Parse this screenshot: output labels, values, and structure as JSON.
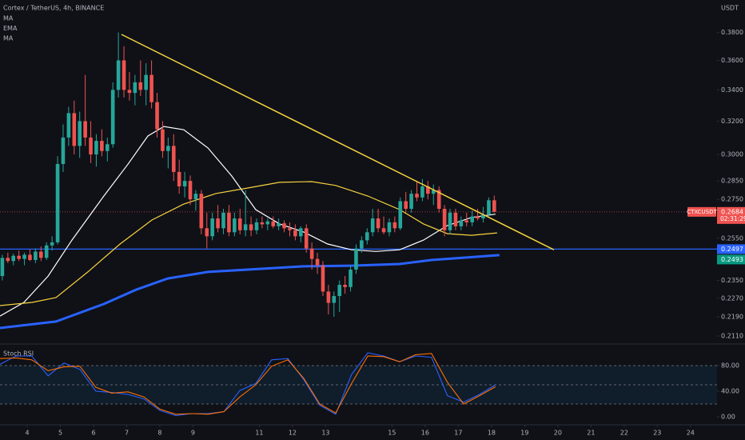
{
  "chart_data": {
    "type": "candlestick",
    "title": "Cortex / TetherUS, 4h, BINANCE",
    "currency": "USDT",
    "log_scale": true,
    "up_color": "#26a69a",
    "down_color": "#ef5350",
    "xlim": [
      3.18,
      24.8
    ],
    "xticks": [
      4,
      5,
      6,
      7,
      8,
      9,
      11,
      12,
      13,
      15,
      16,
      17,
      18,
      19,
      20,
      21,
      22,
      23,
      24
    ],
    "ylim": [
      0.2084,
      0.4047
    ],
    "yticks": [
      {
        "value": 0.38,
        "label": "0.3800"
      },
      {
        "value": 0.36,
        "label": "0.3600"
      },
      {
        "value": 0.34,
        "label": "0.3400"
      },
      {
        "value": 0.32,
        "label": "0.3200"
      },
      {
        "value": 0.3,
        "label": "0.3000"
      },
      {
        "value": 0.285,
        "label": "0.2850"
      },
      {
        "value": 0.275,
        "label": "0.2750"
      },
      {
        "value": 0.255,
        "label": "0.2550"
      },
      {
        "value": 0.235,
        "label": "0.2350"
      },
      {
        "value": 0.227,
        "label": "0.2270"
      },
      {
        "value": 0.219,
        "label": "0.2190"
      },
      {
        "value": 0.211,
        "label": "0.2110"
      }
    ],
    "x": [
      3.25,
      3.417,
      3.583,
      3.75,
      3.917,
      4.083,
      4.25,
      4.417,
      4.583,
      4.75,
      4.917,
      5.083,
      5.25,
      5.417,
      5.583,
      5.75,
      5.917,
      6.083,
      6.25,
      6.417,
      6.583,
      6.75,
      6.917,
      7.083,
      7.25,
      7.417,
      7.583,
      7.75,
      7.917,
      8.083,
      8.25,
      8.417,
      8.583,
      8.75,
      8.917,
      9.083,
      9.25,
      9.417,
      9.583,
      9.75,
      9.917,
      10.083,
      10.25,
      10.417,
      10.583,
      10.75,
      10.917,
      11.083,
      11.25,
      11.417,
      11.583,
      11.75,
      11.917,
      12.083,
      12.25,
      12.417,
      12.583,
      12.75,
      12.917,
      13.083,
      13.25,
      13.417,
      13.583,
      13.75,
      13.917,
      14.083,
      14.25,
      14.417,
      14.583,
      14.75,
      14.917,
      15.083,
      15.25,
      15.417,
      15.583,
      15.75,
      15.917,
      16.083,
      16.25,
      16.417,
      16.583,
      16.75,
      16.917,
      17.083,
      17.25,
      17.417,
      17.583,
      17.75,
      17.917,
      18.083
    ],
    "open": [
      0.237,
      0.2455,
      0.244,
      0.2465,
      0.245,
      0.247,
      0.2445,
      0.2485,
      0.2455,
      0.2515,
      0.253,
      0.2945,
      0.31,
      0.325,
      0.305,
      0.32,
      0.31,
      0.3,
      0.308,
      0.302,
      0.306,
      0.34,
      0.36,
      0.34,
      0.338,
      0.345,
      0.34,
      0.35,
      0.332,
      0.315,
      0.302,
      0.305,
      0.29,
      0.282,
      0.285,
      0.275,
      0.278,
      0.26,
      0.256,
      0.265,
      0.26,
      0.268,
      0.258,
      0.265,
      0.259,
      0.262,
      0.259,
      0.263,
      0.262,
      0.2635,
      0.261,
      0.2625,
      0.26,
      0.259,
      0.256,
      0.26,
      0.25,
      0.245,
      0.242,
      0.23,
      0.225,
      0.228,
      0.233,
      0.232,
      0.24,
      0.25,
      0.254,
      0.258,
      0.265,
      0.26,
      0.258,
      0.263,
      0.26,
      0.274,
      0.27,
      0.278,
      0.276,
      0.282,
      0.278,
      0.28,
      0.27,
      0.259,
      0.268,
      0.261,
      0.264,
      0.263,
      0.266,
      0.265,
      0.267,
      0.2745
    ],
    "high": [
      0.247,
      0.248,
      0.2475,
      0.249,
      0.248,
      0.2495,
      0.25,
      0.251,
      0.253,
      0.256,
      0.299,
      0.318,
      0.329,
      0.333,
      0.326,
      0.35,
      0.32,
      0.312,
      0.315,
      0.31,
      0.345,
      0.38,
      0.37,
      0.352,
      0.35,
      0.36,
      0.358,
      0.36,
      0.338,
      0.32,
      0.31,
      0.312,
      0.297,
      0.29,
      0.288,
      0.28,
      0.28,
      0.268,
      0.268,
      0.272,
      0.27,
      0.272,
      0.268,
      0.27,
      0.28,
      0.266,
      0.265,
      0.266,
      0.265,
      0.266,
      0.265,
      0.264,
      0.263,
      0.262,
      0.261,
      0.262,
      0.253,
      0.248,
      0.244,
      0.233,
      0.23,
      0.235,
      0.237,
      0.242,
      0.252,
      0.256,
      0.26,
      0.27,
      0.27,
      0.266,
      0.265,
      0.266,
      0.276,
      0.279,
      0.28,
      0.285,
      0.286,
      0.285,
      0.283,
      0.282,
      0.272,
      0.27,
      0.27,
      0.266,
      0.268,
      0.269,
      0.27,
      0.271,
      0.276,
      0.277
    ],
    "low": [
      0.235,
      0.243,
      0.242,
      0.244,
      0.242,
      0.244,
      0.243,
      0.244,
      0.2445,
      0.249,
      0.252,
      0.29,
      0.305,
      0.3,
      0.298,
      0.305,
      0.295,
      0.293,
      0.299,
      0.296,
      0.304,
      0.335,
      0.335,
      0.333,
      0.33,
      0.336,
      0.33,
      0.328,
      0.31,
      0.298,
      0.292,
      0.285,
      0.278,
      0.276,
      0.272,
      0.269,
      0.257,
      0.25,
      0.254,
      0.258,
      0.257,
      0.256,
      0.256,
      0.257,
      0.256,
      0.256,
      0.257,
      0.26,
      0.259,
      0.26,
      0.259,
      0.258,
      0.256,
      0.254,
      0.253,
      0.248,
      0.24,
      0.238,
      0.228,
      0.22,
      0.219,
      0.221,
      0.229,
      0.23,
      0.238,
      0.248,
      0.252,
      0.256,
      0.258,
      0.257,
      0.256,
      0.258,
      0.259,
      0.268,
      0.268,
      0.274,
      0.274,
      0.275,
      0.272,
      0.268,
      0.256,
      0.257,
      0.259,
      0.259,
      0.261,
      0.261,
      0.264,
      0.263,
      0.266,
      0.268
    ],
    "close": [
      0.2455,
      0.244,
      0.2465,
      0.245,
      0.247,
      0.2445,
      0.2485,
      0.2455,
      0.2515,
      0.253,
      0.2945,
      0.31,
      0.325,
      0.305,
      0.32,
      0.31,
      0.3,
      0.308,
      0.302,
      0.306,
      0.34,
      0.36,
      0.34,
      0.338,
      0.345,
      0.34,
      0.35,
      0.332,
      0.315,
      0.302,
      0.305,
      0.29,
      0.282,
      0.285,
      0.275,
      0.278,
      0.26,
      0.256,
      0.265,
      0.26,
      0.268,
      0.258,
      0.265,
      0.259,
      0.262,
      0.259,
      0.263,
      0.262,
      0.2635,
      0.261,
      0.2625,
      0.26,
      0.259,
      0.256,
      0.26,
      0.25,
      0.245,
      0.242,
      0.23,
      0.225,
      0.228,
      0.233,
      0.232,
      0.24,
      0.25,
      0.254,
      0.258,
      0.265,
      0.26,
      0.258,
      0.263,
      0.26,
      0.274,
      0.27,
      0.278,
      0.276,
      0.282,
      0.278,
      0.28,
      0.27,
      0.259,
      0.268,
      0.261,
      0.264,
      0.263,
      0.266,
      0.265,
      0.267,
      0.2745,
      0.2684
    ],
    "overlays": [
      {
        "name": "MA",
        "color": "#ffffff",
        "width": 1.2,
        "x": [
          3.18,
          3.9,
          4.63,
          5.35,
          6.31,
          7.04,
          7.64,
          8.12,
          8.72,
          9.45,
          10.17,
          10.89,
          11.61,
          12.34,
          13.06,
          13.78,
          14.51,
          15.23,
          15.95,
          16.67,
          17.4,
          18.12
        ],
        "values": [
          0.2193,
          0.2252,
          0.237,
          0.2541,
          0.2768,
          0.2944,
          0.3109,
          0.3167,
          0.3147,
          0.3038,
          0.2877,
          0.2696,
          0.2622,
          0.2581,
          0.2522,
          0.2494,
          0.2486,
          0.2494,
          0.2541,
          0.2614,
          0.2655,
          0.2672
        ]
      },
      {
        "name": "EMA",
        "color": "#f7d23e",
        "width": 1.2,
        "x": [
          3.18,
          4.15,
          4.87,
          5.83,
          6.8,
          7.76,
          8.72,
          9.69,
          10.65,
          11.61,
          12.58,
          13.3,
          14.27,
          15.23,
          15.95,
          16.67,
          17.4,
          18.17
        ],
        "values": [
          0.2238,
          0.2252,
          0.2273,
          0.2389,
          0.2522,
          0.2642,
          0.2725,
          0.2781,
          0.2811,
          0.2842,
          0.2846,
          0.2825,
          0.2768,
          0.2696,
          0.2622,
          0.2573,
          0.2565,
          0.2577
        ]
      },
      {
        "name": "MA",
        "color": "#2962ff",
        "width": 3,
        "x": [
          3.18,
          4.87,
          6.31,
          7.28,
          8.24,
          9.45,
          10.65,
          12.34,
          13.78,
          15.23,
          16.19,
          17.16,
          18.24
        ],
        "values": [
          0.2143,
          0.217,
          0.2245,
          0.2308,
          0.2359,
          0.2389,
          0.24,
          0.2415,
          0.2418,
          0.2426,
          0.2445,
          0.2456,
          0.2468
        ]
      }
    ],
    "trendline": {
      "color": "#f7d23e",
      "x": [
        6.84,
        19.88
      ],
      "values": [
        0.3786,
        0.2494
      ]
    },
    "hline": {
      "value": 0.2497,
      "color": "#2962ff"
    },
    "last_price": {
      "symbol": "CTXCUSDT",
      "value": 0.2684,
      "countdown": "02:31:29",
      "color": "#ef5350"
    },
    "price_label": {
      "value": 0.2493,
      "color": "#089981"
    },
    "stoch": {
      "title": "Stoch RSI",
      "ylim": [
        -11.25,
        111.25
      ],
      "yticks": [
        {
          "value": 80,
          "label": "80.00"
        },
        {
          "value": 40,
          "label": "40.00"
        },
        {
          "value": 0,
          "label": "0.00"
        }
      ],
      "levels": [
        80,
        50,
        20
      ],
      "x": [
        3.18,
        3.66,
        4.14,
        4.63,
        5.11,
        5.59,
        6.07,
        6.55,
        7.04,
        7.52,
        8.0,
        8.48,
        8.96,
        9.45,
        9.93,
        10.41,
        10.89,
        11.37,
        11.86,
        12.34,
        12.82,
        13.3,
        13.78,
        14.27,
        14.75,
        15.23,
        15.71,
        16.19,
        16.67,
        17.16,
        17.64,
        18.12
      ],
      "series": [
        {
          "color": "#2962ff",
          "values": [
            82,
            95,
            95,
            64,
            84,
            74,
            40,
            38,
            35,
            28,
            10,
            2,
            5,
            5,
            8,
            41,
            52,
            89,
            91,
            58,
            18,
            4,
            66,
            100,
            95,
            86,
            95,
            93,
            33,
            23,
            35,
            50
          ]
        },
        {
          "color": "#ff6d00",
          "values": [
            91,
            92,
            89,
            72,
            78,
            79,
            46,
            37,
            39,
            31,
            12,
            4,
            5,
            4,
            8,
            31,
            50,
            79,
            89,
            60,
            20,
            6,
            52,
            95,
            94,
            86,
            97,
            99,
            54,
            20,
            33,
            47
          ]
        }
      ]
    }
  }
}
